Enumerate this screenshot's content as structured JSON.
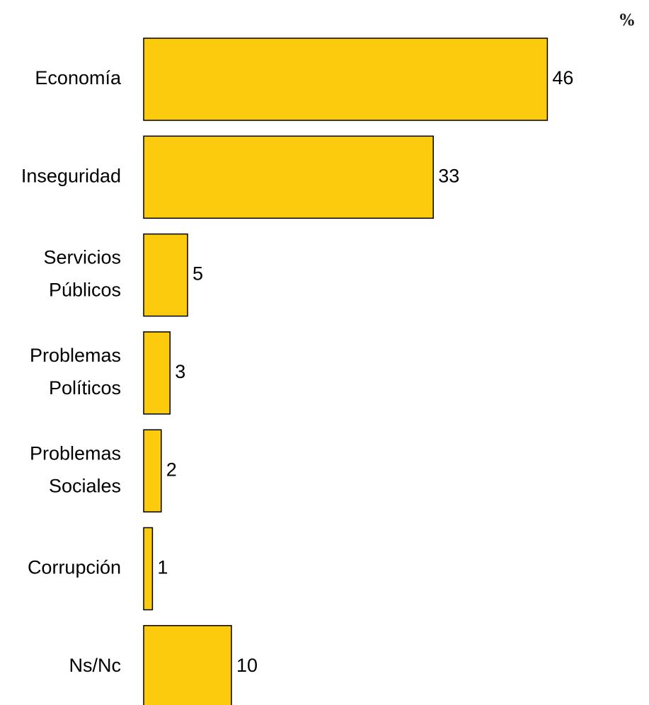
{
  "chart_data": {
    "type": "bar",
    "orientation": "horizontal",
    "unit_label": "%",
    "categories": [
      [
        "Economía"
      ],
      [
        "Inseguridad"
      ],
      [
        "Servicios",
        "Públicos"
      ],
      [
        "Problemas",
        "Políticos"
      ],
      [
        "Problemas",
        "Sociales"
      ],
      [
        "Corrupción"
      ],
      [
        "Ns/Nc"
      ]
    ],
    "values": [
      46,
      33,
      5,
      3,
      2,
      1,
      10
    ],
    "data_labels": [
      "46",
      "33",
      "5",
      "3",
      "2",
      "1",
      "10"
    ],
    "bar_color": "#FCCB0E",
    "bar_border_color": "#000000",
    "xlim": [
      0,
      50
    ],
    "grid": false,
    "legend": false
  }
}
